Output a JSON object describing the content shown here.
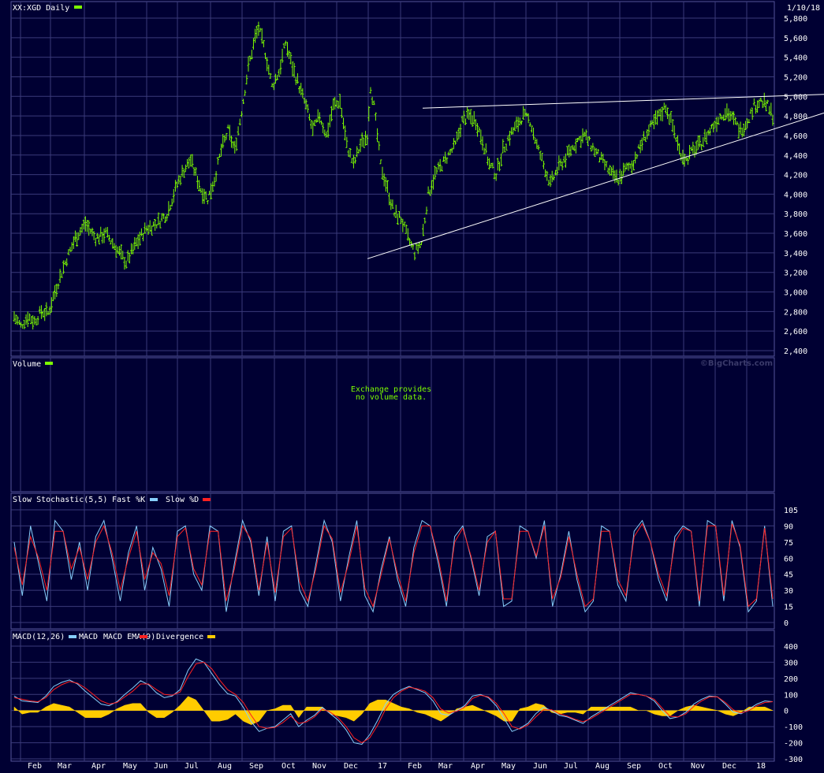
{
  "colors": {
    "background": "#000033",
    "grid": "#3a3a7a",
    "price": "#7cfc00",
    "fast_k": "#87cefa",
    "slow_d": "#ff2020",
    "macd": "#87cefa",
    "macd_ema": "#ff2020",
    "divergence": "#ffcc00",
    "trendline": "#ffffff",
    "text": "#ffffff"
  },
  "header": {
    "title": "XX:XGD Daily",
    "date": "1/10/18"
  },
  "volume_panel": {
    "title": "Volume",
    "message_line1": "Exchange provides",
    "message_line2": "no volume data.",
    "watermark": "©BigCharts.com"
  },
  "stoch_panel": {
    "title": "Slow Stochastic(5,5)",
    "fast_label": "Fast %K",
    "slow_label": "Slow %D"
  },
  "macd_panel": {
    "title": "MACD(12,26)",
    "macd_label": "MACD",
    "ema_label": "MACD EMA(9)",
    "div_label": "Divergence"
  },
  "chart_data": [
    {
      "type": "ohlc",
      "title": "XX:XGD Daily",
      "ylim": [
        2400,
        5800
      ],
      "yticks": [
        "2,400",
        "2,600",
        "2,800",
        "3,000",
        "3,200",
        "3,400",
        "3,600",
        "3,800",
        "4,000",
        "4,200",
        "4,400",
        "4,600",
        "4,800",
        "5,000",
        "5,200",
        "5,400",
        "5,600",
        "5,800"
      ],
      "xlabels": [
        "Feb",
        "Mar",
        "Apr",
        "May",
        "Jun",
        "Jul",
        "Aug",
        "Sep",
        "Oct",
        "Nov",
        "Dec",
        "17",
        "Feb",
        "Mar",
        "Apr",
        "May",
        "Jun",
        "Jul",
        "Aug",
        "Sep",
        "Oct",
        "Nov",
        "Dec",
        "18"
      ],
      "price_path": [
        [
          0,
          2750
        ],
        [
          4,
          2650
        ],
        [
          8,
          2750
        ],
        [
          12,
          2700
        ],
        [
          16,
          2800
        ],
        [
          20,
          2780
        ],
        [
          24,
          3000
        ],
        [
          30,
          3300
        ],
        [
          36,
          3550
        ],
        [
          42,
          3700
        ],
        [
          48,
          3550
        ],
        [
          54,
          3600
        ],
        [
          60,
          3450
        ],
        [
          66,
          3300
        ],
        [
          72,
          3500
        ],
        [
          78,
          3650
        ],
        [
          84,
          3700
        ],
        [
          90,
          3800
        ],
        [
          96,
          4100
        ],
        [
          100,
          4250
        ],
        [
          104,
          4350
        ],
        [
          110,
          4050
        ],
        [
          114,
          3950
        ],
        [
          118,
          4150
        ],
        [
          122,
          4450
        ],
        [
          126,
          4650
        ],
        [
          130,
          4450
        ],
        [
          134,
          4850
        ],
        [
          138,
          5300
        ],
        [
          142,
          5600
        ],
        [
          144,
          5700
        ],
        [
          148,
          5450
        ],
        [
          152,
          5100
        ],
        [
          156,
          5250
        ],
        [
          160,
          5550
        ],
        [
          164,
          5300
        ],
        [
          168,
          5100
        ],
        [
          172,
          4900
        ],
        [
          176,
          4650
        ],
        [
          180,
          4800
        ],
        [
          184,
          4600
        ],
        [
          188,
          4900
        ],
        [
          192,
          4950
        ],
        [
          196,
          4500
        ],
        [
          200,
          4300
        ],
        [
          204,
          4500
        ],
        [
          208,
          4600
        ],
        [
          210,
          5100
        ],
        [
          212,
          4900
        ],
        [
          216,
          4300
        ],
        [
          220,
          4050
        ],
        [
          224,
          3800
        ],
        [
          228,
          3750
        ],
        [
          232,
          3550
        ],
        [
          236,
          3400
        ],
        [
          240,
          3500
        ],
        [
          244,
          4000
        ],
        [
          248,
          4200
        ],
        [
          252,
          4300
        ],
        [
          256,
          4400
        ],
        [
          260,
          4500
        ],
        [
          264,
          4750
        ],
        [
          268,
          4800
        ],
        [
          272,
          4750
        ],
        [
          276,
          4550
        ],
        [
          280,
          4300
        ],
        [
          284,
          4200
        ],
        [
          288,
          4450
        ],
        [
          292,
          4600
        ],
        [
          296,
          4700
        ],
        [
          300,
          4800
        ],
        [
          304,
          4750
        ],
        [
          308,
          4500
        ],
        [
          312,
          4300
        ],
        [
          316,
          4100
        ],
        [
          320,
          4250
        ],
        [
          324,
          4350
        ],
        [
          328,
          4450
        ],
        [
          332,
          4550
        ],
        [
          336,
          4600
        ],
        [
          340,
          4500
        ],
        [
          344,
          4400
        ],
        [
          348,
          4300
        ],
        [
          352,
          4200
        ],
        [
          356,
          4150
        ],
        [
          360,
          4250
        ],
        [
          364,
          4300
        ],
        [
          368,
          4450
        ],
        [
          372,
          4600
        ],
        [
          376,
          4700
        ],
        [
          380,
          4800
        ],
        [
          384,
          4900
        ],
        [
          388,
          4700
        ],
        [
          392,
          4450
        ],
        [
          396,
          4350
        ],
        [
          400,
          4450
        ],
        [
          404,
          4500
        ],
        [
          408,
          4600
        ],
        [
          412,
          4700
        ],
        [
          416,
          4800
        ],
        [
          420,
          4850
        ],
        [
          424,
          4750
        ],
        [
          428,
          4650
        ],
        [
          432,
          4750
        ],
        [
          436,
          4900
        ],
        [
          440,
          4950
        ],
        [
          444,
          4900
        ],
        [
          447,
          4800
        ]
      ],
      "resistance_line": [
        [
          4880,
          4870
        ],
        [
          5020,
          5010
        ]
      ],
      "support_line": [
        [
          3340,
          3340
        ],
        [
          4830,
          4830
        ]
      ]
    },
    {
      "type": "line",
      "title": "Slow Stochastic(5,5)",
      "ylim": [
        0,
        105
      ],
      "yticks": [
        "0",
        "15",
        "30",
        "45",
        "60",
        "75",
        "90",
        "105"
      ],
      "series": [
        {
          "name": "Fast %K",
          "values": [
            75,
            25,
            90,
            55,
            20,
            95,
            85,
            40,
            75,
            30,
            80,
            95,
            60,
            20,
            65,
            90,
            30,
            70,
            50,
            15,
            85,
            90,
            45,
            30,
            90,
            85,
            10,
            55,
            95,
            75,
            25,
            80,
            20,
            85,
            90,
            30,
            15,
            55,
            95,
            75,
            20,
            60,
            95,
            25,
            10,
            50,
            80,
            40,
            15,
            70,
            95,
            90,
            55,
            15,
            80,
            90,
            60,
            25,
            80,
            85,
            15,
            20,
            90,
            85,
            60,
            95,
            15,
            45,
            85,
            40,
            10,
            20,
            90,
            85,
            35,
            20,
            85,
            95,
            75,
            40,
            20,
            80,
            90,
            85,
            15,
            95,
            90,
            20,
            95,
            70,
            10,
            20,
            90,
            15
          ]
        },
        {
          "name": "Slow %D",
          "values": [
            70,
            35,
            80,
            60,
            30,
            85,
            85,
            50,
            70,
            40,
            75,
            90,
            65,
            30,
            60,
            85,
            40,
            65,
            55,
            25,
            80,
            88,
            50,
            35,
            85,
            85,
            20,
            50,
            90,
            78,
            30,
            75,
            28,
            80,
            88,
            38,
            20,
            50,
            90,
            78,
            28,
            55,
            90,
            32,
            15,
            45,
            78,
            45,
            20,
            65,
            90,
            90,
            60,
            20,
            75,
            88,
            62,
            30,
            75,
            85,
            22,
            22,
            85,
            85,
            62,
            90,
            22,
            42,
            80,
            45,
            15,
            22,
            85,
            85,
            40,
            25,
            80,
            92,
            75,
            45,
            25,
            75,
            88,
            85,
            20,
            90,
            90,
            25,
            92,
            72,
            15,
            22,
            88,
            22
          ]
        }
      ]
    },
    {
      "type": "line",
      "title": "MACD(12,26)",
      "ylim": [
        -300,
        400
      ],
      "yticks": [
        "-300",
        "-200",
        "-100",
        "0",
        "100",
        "200",
        "300",
        "400"
      ],
      "series": [
        {
          "name": "MACD",
          "values": [
            90,
            60,
            55,
            50,
            90,
            150,
            175,
            190,
            165,
            120,
            80,
            40,
            30,
            55,
            100,
            140,
            185,
            160,
            110,
            80,
            90,
            130,
            250,
            320,
            300,
            230,
            160,
            105,
            90,
            20,
            -70,
            -130,
            -110,
            -100,
            -60,
            -20,
            -100,
            -60,
            -30,
            20,
            -20,
            -60,
            -120,
            -200,
            -210,
            -150,
            -60,
            40,
            100,
            130,
            150,
            130,
            110,
            60,
            -20,
            -30,
            0,
            30,
            90,
            100,
            80,
            30,
            -50,
            -130,
            -110,
            -80,
            -20,
            20,
            0,
            -30,
            -40,
            -60,
            -80,
            -40,
            -10,
            20,
            50,
            80,
            110,
            100,
            90,
            60,
            0,
            -50,
            -40,
            -10,
            40,
            70,
            90,
            85,
            40,
            -10,
            -20,
            10,
            40,
            60,
            55
          ]
        },
        {
          "name": "MACD EMA(9)",
          "values": [
            80,
            70,
            60,
            55,
            80,
            130,
            160,
            180,
            170,
            140,
            100,
            60,
            40,
            50,
            85,
            120,
            165,
            165,
            130,
            100,
            95,
            115,
            210,
            290,
            300,
            260,
            190,
            130,
            100,
            50,
            -30,
            -100,
            -110,
            -105,
            -75,
            -35,
            -80,
            -70,
            -40,
            10,
            -10,
            -45,
            -100,
            -170,
            -200,
            -170,
            -90,
            10,
            80,
            120,
            145,
            135,
            120,
            80,
            10,
            -15,
            -5,
            20,
            75,
            95,
            85,
            45,
            -20,
            -100,
            -115,
            -90,
            -40,
            5,
            5,
            -20,
            -35,
            -55,
            -70,
            -50,
            -20,
            10,
            40,
            70,
            100,
            100,
            90,
            70,
            15,
            -35,
            -40,
            -20,
            25,
            60,
            85,
            85,
            50,
            5,
            -15,
            0,
            30,
            50,
            55
          ]
        }
      ]
    }
  ]
}
